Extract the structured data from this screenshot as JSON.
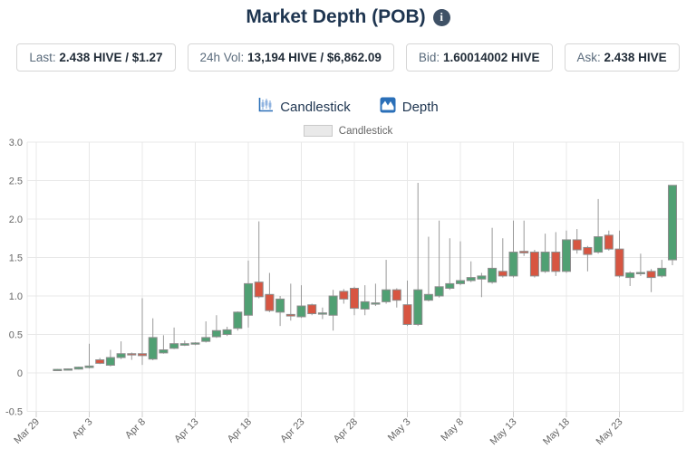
{
  "header": {
    "title": "Market Depth (POB)",
    "info_glyph": "i"
  },
  "stats": [
    {
      "label": "Last:",
      "value": "2.438 HIVE / $1.27"
    },
    {
      "label": "24h Vol:",
      "value": "13,194 HIVE / $6,862.09"
    },
    {
      "label": "Bid:",
      "value": "1.60014002 HIVE"
    },
    {
      "label": "Ask:",
      "value": "2.438 HIVE"
    }
  ],
  "tabs": [
    {
      "label": "Candlestick",
      "icon": "candlestick-chart-icon"
    },
    {
      "label": "Depth",
      "icon": "depth-chart-icon"
    }
  ],
  "legend": {
    "label": "Candlestick"
  },
  "colors": {
    "up": "#50a073",
    "down": "#d75541",
    "wick": "#999999",
    "candle_border": "#8c8c8c",
    "grid": "#e8e8e8",
    "axis_text": "#666666",
    "title_text": "#1e3550",
    "tab_icon_blue": "#2a6fb8",
    "tab_icon_light": "#8fb3e0",
    "info_badge": "#3f5166"
  },
  "chart_data": {
    "type": "candlestick",
    "title": "",
    "xlabel": "",
    "ylabel": "",
    "ylim": [
      -0.5,
      3.0
    ],
    "grid": true,
    "legend_position": "top",
    "y_ticks": [
      "3.0",
      "2.5",
      "2.0",
      "1.5",
      "1.0",
      "0.5",
      "0",
      "-0.5"
    ],
    "y_tick_values": [
      3.0,
      2.5,
      2.0,
      1.5,
      1.0,
      0.5,
      0,
      -0.5
    ],
    "x_ticks": [
      "Mar 29",
      "Apr 3",
      "Apr 8",
      "Apr 13",
      "Apr 18",
      "Apr 23",
      "Apr 28",
      "May 3",
      "May 8",
      "May 13",
      "May 18",
      "May 23"
    ],
    "x_tick_days": [
      0,
      5,
      10,
      15,
      20,
      25,
      30,
      35,
      40,
      45,
      50,
      55
    ],
    "first_candle_day": 2,
    "series_name": "Candlestick",
    "candles_format": [
      "open",
      "high",
      "low",
      "close"
    ],
    "candles": [
      [
        0.04,
        0.052,
        0.033,
        0.046
      ],
      [
        0.046,
        0.058,
        0.03,
        0.052
      ],
      [
        0.05,
        0.082,
        0.045,
        0.075
      ],
      [
        0.07,
        0.38,
        0.058,
        0.09
      ],
      [
        0.17,
        0.195,
        0.115,
        0.125
      ],
      [
        0.1,
        0.3,
        0.085,
        0.2
      ],
      [
        0.2,
        0.41,
        0.18,
        0.25
      ],
      [
        0.25,
        0.265,
        0.17,
        0.24
      ],
      [
        0.25,
        0.97,
        0.105,
        0.225
      ],
      [
        0.18,
        0.71,
        0.165,
        0.46
      ],
      [
        0.26,
        0.49,
        0.25,
        0.3
      ],
      [
        0.32,
        0.59,
        0.31,
        0.38
      ],
      [
        0.36,
        0.42,
        0.35,
        0.38
      ],
      [
        0.375,
        0.4,
        0.36,
        0.39
      ],
      [
        0.41,
        0.67,
        0.395,
        0.46
      ],
      [
        0.47,
        0.75,
        0.455,
        0.55
      ],
      [
        0.5,
        0.6,
        0.48,
        0.56
      ],
      [
        0.58,
        0.8,
        0.55,
        0.79
      ],
      [
        0.75,
        1.46,
        0.59,
        1.16
      ],
      [
        1.18,
        1.97,
        0.97,
        0.99
      ],
      [
        1.02,
        1.3,
        0.79,
        0.81
      ],
      [
        0.79,
        1.0,
        0.61,
        0.96
      ],
      [
        0.76,
        1.16,
        0.68,
        0.74
      ],
      [
        0.73,
        1.14,
        0.715,
        0.87
      ],
      [
        0.885,
        0.9,
        0.75,
        0.77
      ],
      [
        0.77,
        0.85,
        0.7,
        0.78
      ],
      [
        0.75,
        1.08,
        0.55,
        1.0
      ],
      [
        1.06,
        1.09,
        0.9,
        0.96
      ],
      [
        1.1,
        1.12,
        0.75,
        0.84
      ],
      [
        0.83,
        1.14,
        0.75,
        0.925
      ],
      [
        0.895,
        1.16,
        0.87,
        0.91
      ],
      [
        0.925,
        1.47,
        0.9,
        1.08
      ],
      [
        1.08,
        1.1,
        0.85,
        0.945
      ],
      [
        0.886,
        1.2,
        0.61,
        0.63
      ],
      [
        0.63,
        2.47,
        0.61,
        1.08
      ],
      [
        0.945,
        1.77,
        0.93,
        1.02
      ],
      [
        1.0,
        1.98,
        0.98,
        1.12
      ],
      [
        1.1,
        1.75,
        1.08,
        1.16
      ],
      [
        1.16,
        1.71,
        1.14,
        1.2
      ],
      [
        1.2,
        1.45,
        1.18,
        1.24
      ],
      [
        1.22,
        1.3,
        0.985,
        1.26
      ],
      [
        1.18,
        1.886,
        1.16,
        1.36
      ],
      [
        1.32,
        1.75,
        1.24,
        1.26
      ],
      [
        1.26,
        1.98,
        1.24,
        1.57
      ],
      [
        1.58,
        1.98,
        1.52,
        1.56
      ],
      [
        1.57,
        1.6,
        1.24,
        1.26
      ],
      [
        1.32,
        1.81,
        1.3,
        1.57
      ],
      [
        1.57,
        1.83,
        1.26,
        1.32
      ],
      [
        1.32,
        1.85,
        1.3,
        1.73
      ],
      [
        1.73,
        1.87,
        1.55,
        1.6
      ],
      [
        1.63,
        1.65,
        1.32,
        1.54
      ],
      [
        1.57,
        2.26,
        1.55,
        1.77
      ],
      [
        1.79,
        1.85,
        1.59,
        1.61
      ],
      [
        1.61,
        1.85,
        1.24,
        1.26
      ],
      [
        1.24,
        1.32,
        1.13,
        1.3
      ],
      [
        1.3,
        1.55,
        1.26,
        1.305
      ],
      [
        1.32,
        1.35,
        1.05,
        1.24
      ],
      [
        1.26,
        1.47,
        1.24,
        1.36
      ],
      [
        1.47,
        2.44,
        1.4,
        2.438
      ]
    ]
  }
}
